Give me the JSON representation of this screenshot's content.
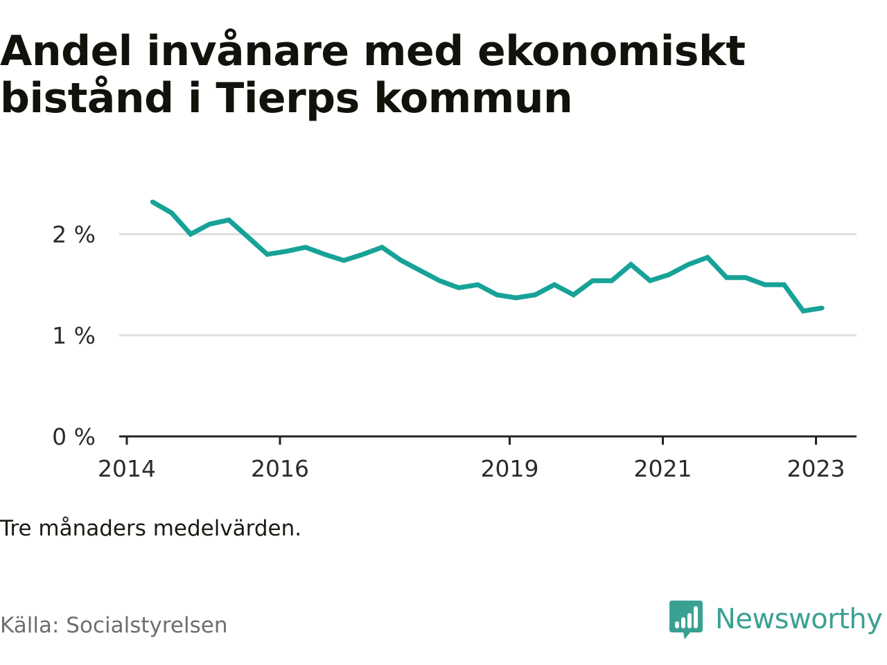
{
  "title": "Andel invånare med ekonomiskt bistånd i Tierps kommun",
  "note": "Tre månaders medelvärden.",
  "source": "Källa: Socialstyrelsen",
  "brand": {
    "name": "Newsworthy",
    "logo_icon": "bar-chart-speech-bubble-icon",
    "color": "#3aa192"
  },
  "colors": {
    "line": "#17a298",
    "grid": "#dddddd",
    "axis": "#222222"
  },
  "chart_data": {
    "type": "line",
    "title": "Andel invånare med ekonomiskt bistånd i Tierps kommun",
    "xlabel": "",
    "ylabel": "",
    "x_ticks": [
      "2014",
      "2016",
      "2019",
      "2021",
      "2023"
    ],
    "y_ticks": [
      "0 %",
      "1 %",
      "2 %"
    ],
    "ylim": [
      0,
      2.5
    ],
    "grid": true,
    "series": [
      {
        "x": [
          "2014-05",
          "2014-08",
          "2014-11",
          "2015-02",
          "2015-05",
          "2015-08",
          "2015-11",
          "2016-02",
          "2016-05",
          "2016-08",
          "2016-11",
          "2017-02",
          "2017-05",
          "2017-08",
          "2017-11",
          "2018-02",
          "2018-05",
          "2018-08",
          "2018-11",
          "2019-02",
          "2019-05",
          "2019-08",
          "2019-11",
          "2020-02",
          "2020-05",
          "2020-08",
          "2020-11",
          "2021-02",
          "2021-05",
          "2021-08",
          "2021-11",
          "2022-02",
          "2022-05",
          "2022-08",
          "2022-11",
          "2023-02"
        ],
        "values": [
          2.32,
          2.21,
          2.0,
          2.1,
          2.14,
          1.97,
          1.8,
          1.83,
          1.87,
          1.8,
          1.74,
          1.8,
          1.87,
          1.74,
          1.64,
          1.54,
          1.47,
          1.5,
          1.4,
          1.37,
          1.4,
          1.5,
          1.4,
          1.54,
          1.54,
          1.7,
          1.54,
          1.6,
          1.7,
          1.77,
          1.57,
          1.57,
          1.5,
          1.5,
          1.24,
          1.27
        ]
      }
    ]
  }
}
